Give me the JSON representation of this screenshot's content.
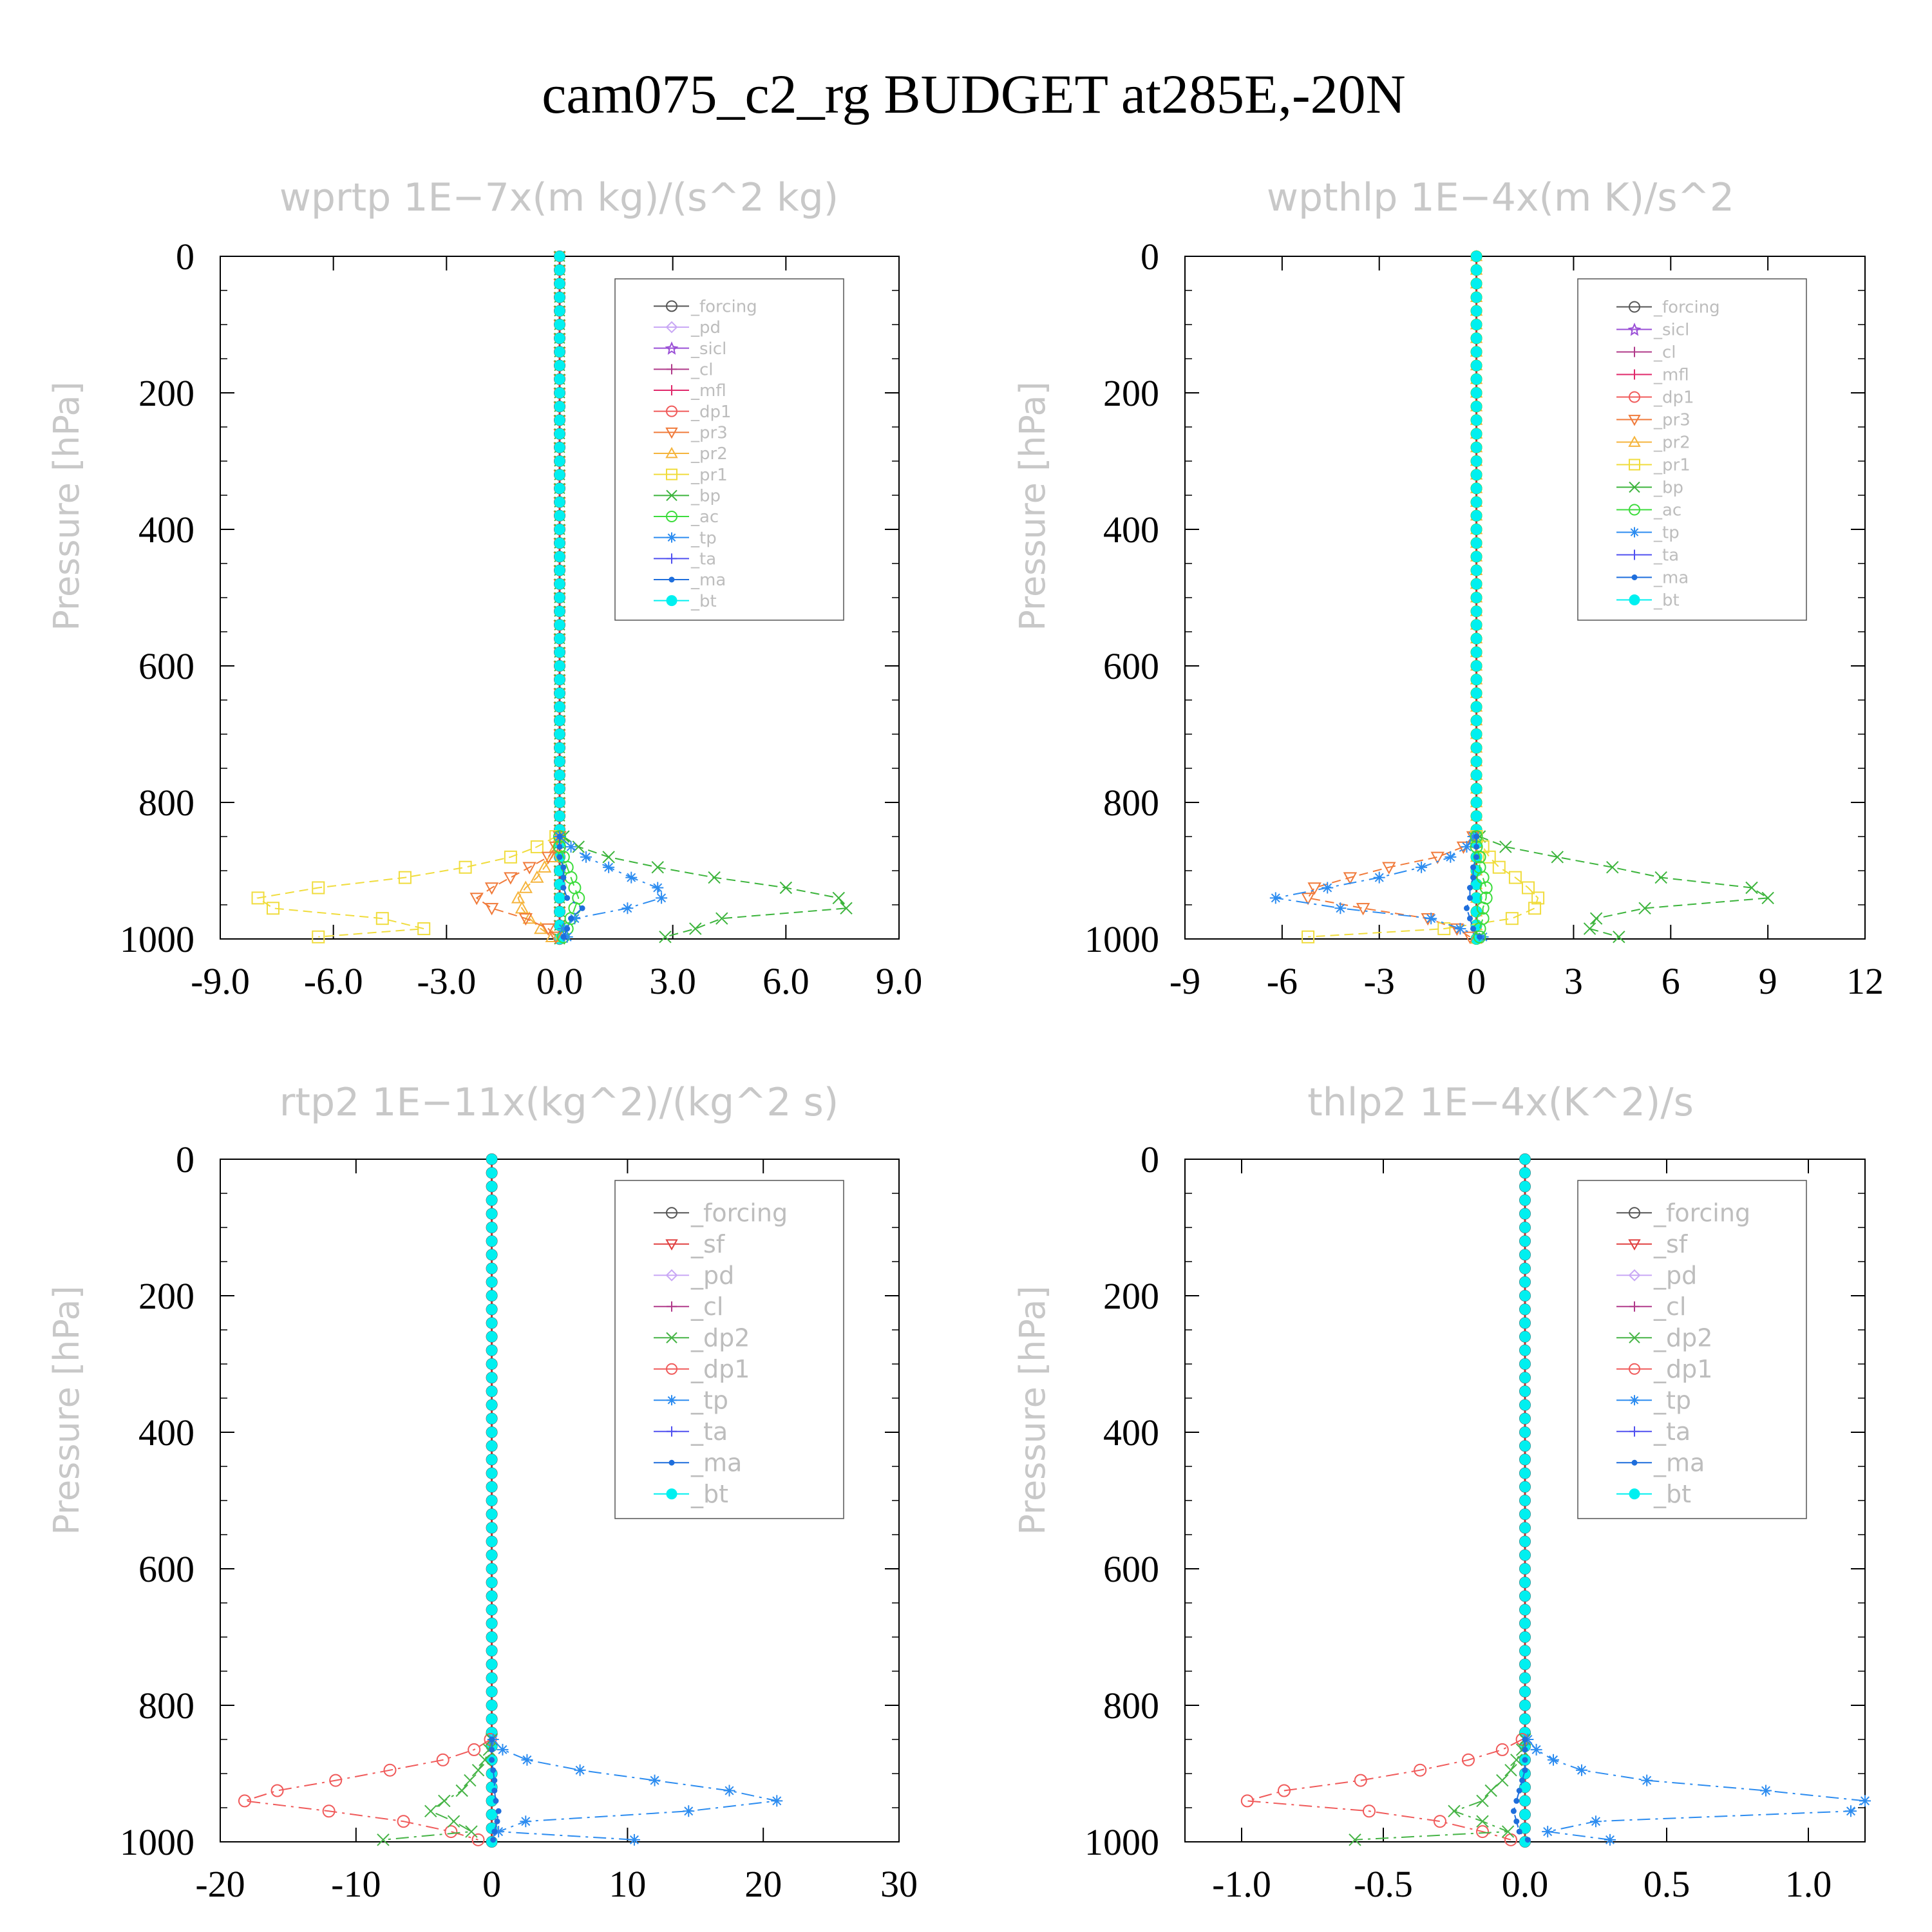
{
  "figure": {
    "title": "cam075_c2_rg  BUDGET at285E,-20N"
  },
  "colors": {
    "forcing": "#555555",
    "pd": "#c9a8f5",
    "sicl": "#9a4fd6",
    "cl": "#b03a8a",
    "mfl": "#e0286a",
    "dp1": "#f05a5a",
    "pr3": "#f07a3a",
    "pr2": "#f5b43c",
    "pr1": "#f0dc3c",
    "bp": "#3cb43c",
    "ac": "#3cdc3c",
    "tp": "#2c8cf0",
    "ta": "#5050f0",
    "ma": "#1e6edc",
    "bt": "#00f0f0",
    "sf": "#e04040",
    "dp2": "#46b446"
  },
  "chart_data": [
    {
      "type": "line",
      "title": "wprtp  1E−7x(m kg)/(s^2 kg)",
      "ylabel": "Pressure [hPa]",
      "xlim": [
        -9,
        9
      ],
      "xticks": [
        -9,
        -6,
        -3,
        0,
        3,
        6,
        9
      ],
      "xtick_labels": [
        "-9.0",
        "-6.0",
        "-3.0",
        "0.0",
        "3.0",
        "6.0",
        "9.0"
      ],
      "ylim": [
        0,
        1000
      ],
      "yticks": [
        0,
        200,
        400,
        600,
        800,
        1000
      ],
      "y_inverted": true,
      "legend_position": "top-right",
      "legend": [
        "_forcing",
        "_pd",
        "_sicl",
        "_cl",
        "_mfl",
        "_dp1",
        "_pr3",
        "_pr2",
        "_pr1",
        "_bp",
        "_ac",
        "_tp",
        "_ta",
        "_ma",
        "_bt"
      ],
      "p": [
        850,
        865,
        880,
        895,
        910,
        925,
        940,
        955,
        970,
        985,
        997
      ],
      "series": [
        {
          "name": "_pr1",
          "key": "pr1",
          "marker": "square",
          "values": [
            -0.1,
            -0.6,
            -1.3,
            -2.5,
            -4.1,
            -6.4,
            -8.0,
            -7.6,
            -4.7,
            -3.6,
            -6.4
          ]
        },
        {
          "name": "_pr2",
          "key": "pr2",
          "marker": "triangle",
          "values": [
            0,
            -0.1,
            -0.2,
            -0.4,
            -0.6,
            -0.9,
            -1.1,
            -1.0,
            -0.8,
            -0.5,
            -0.2
          ]
        },
        {
          "name": "_pr3",
          "key": "pr3",
          "marker": "triangle-down",
          "values": [
            0,
            -0.1,
            -0.3,
            -0.8,
            -1.3,
            -1.8,
            -2.2,
            -1.8,
            -0.9,
            -0.3,
            -0.1
          ]
        },
        {
          "name": "_bp",
          "key": "bp",
          "marker": "x",
          "values": [
            0.1,
            0.5,
            1.3,
            2.6,
            4.1,
            6.0,
            7.4,
            7.6,
            4.3,
            3.6,
            2.8
          ]
        },
        {
          "name": "_ac",
          "key": "ac",
          "marker": "circle",
          "values": [
            0,
            0,
            0.1,
            0.2,
            0.3,
            0.4,
            0.5,
            0.4,
            0.3,
            0.2,
            0.1
          ]
        },
        {
          "name": "_tp",
          "key": "tp",
          "marker": "asterisk",
          "values": [
            0,
            0.3,
            0.7,
            1.3,
            1.9,
            2.6,
            2.7,
            1.8,
            0.4,
            0.1,
            0.2
          ]
        },
        {
          "name": "_ma",
          "key": "ma",
          "marker": "dot",
          "values": [
            0,
            0,
            0,
            0.1,
            0.1,
            0.1,
            0.2,
            0.6,
            0.3,
            0.2,
            0.1
          ]
        }
      ]
    },
    {
      "type": "line",
      "title": "wpthlp  1E−4x(m K)/s^2",
      "ylabel": "Pressure [hPa]",
      "xlim": [
        -9,
        12
      ],
      "xticks": [
        -9,
        -6,
        -3,
        0,
        3,
        6,
        9,
        12
      ],
      "xtick_labels": [
        "-9",
        "-6",
        "-3",
        "0",
        "3",
        "6",
        "9",
        "12"
      ],
      "ylim": [
        0,
        1000
      ],
      "yticks": [
        0,
        200,
        400,
        600,
        800,
        1000
      ],
      "y_inverted": true,
      "legend_position": "top-right",
      "legend": [
        "_forcing",
        "_sicl",
        "_cl",
        "_mfl",
        "_dp1",
        "_pr3",
        "_pr2",
        "_pr1",
        "_bp",
        "_ac",
        "_tp",
        "_ta",
        "_ma",
        "_bt"
      ],
      "p": [
        850,
        865,
        880,
        895,
        910,
        925,
        940,
        955,
        970,
        985,
        997
      ],
      "series": [
        {
          "name": "_pr3",
          "key": "pr3",
          "marker": "triangle-down",
          "values": [
            -0.1,
            -0.4,
            -1.2,
            -2.7,
            -3.9,
            -5.0,
            -5.2,
            -3.5,
            -1.5,
            -0.6,
            -0.2
          ]
        },
        {
          "name": "_bp",
          "key": "bp",
          "marker": "x",
          "values": [
            0.1,
            0.9,
            2.5,
            4.2,
            5.7,
            8.5,
            9.0,
            5.2,
            3.7,
            3.5,
            4.4
          ]
        },
        {
          "name": "_pr1",
          "key": "pr1",
          "marker": "square",
          "values": [
            0,
            0.2,
            0.4,
            0.7,
            1.2,
            1.6,
            1.9,
            1.8,
            1.1,
            -1.0,
            -5.2
          ]
        },
        {
          "name": "_tp",
          "key": "tp",
          "marker": "asterisk",
          "values": [
            -0.1,
            -0.3,
            -0.8,
            -1.7,
            -3.0,
            -4.6,
            -6.2,
            -4.2,
            -1.4,
            -0.5,
            0.2
          ]
        },
        {
          "name": "_ac",
          "key": "ac",
          "marker": "circle",
          "values": [
            0,
            0,
            0.1,
            0.1,
            0.2,
            0.3,
            0.3,
            0.2,
            0.2,
            0.1,
            0.1
          ]
        },
        {
          "name": "_ma",
          "key": "ma",
          "marker": "dot",
          "values": [
            0,
            0,
            0,
            -0.1,
            -0.1,
            -0.2,
            -0.2,
            -0.3,
            -0.2,
            -0.1,
            0.1
          ]
        }
      ]
    },
    {
      "type": "line",
      "title": "rtp2  1E−11x(kg^2)/(kg^2 s)",
      "ylabel": "Pressure [hPa]",
      "xlim": [
        -20,
        30
      ],
      "xticks": [
        -20,
        -10,
        0,
        10,
        20,
        30
      ],
      "xtick_labels": [
        "-20",
        "-10",
        "0",
        "10",
        "20",
        "30"
      ],
      "ylim": [
        0,
        1000
      ],
      "yticks": [
        0,
        200,
        400,
        600,
        800,
        1000
      ],
      "y_inverted": true,
      "legend_position": "top-right",
      "legend": [
        "_forcing",
        "_sf",
        "_pd",
        "_cl",
        "_dp2",
        "_dp1",
        "_tp",
        "_ta",
        "_ma",
        "_bt"
      ],
      "p": [
        850,
        865,
        880,
        895,
        910,
        925,
        940,
        955,
        970,
        985,
        997
      ],
      "series": [
        {
          "name": "_dp1",
          "key": "dp1",
          "marker": "circle",
          "values": [
            -0.1,
            -1.3,
            -3.6,
            -7.5,
            -11.5,
            -15.8,
            -18.2,
            -12.0,
            -6.5,
            -3.0,
            -1.0
          ]
        },
        {
          "name": "_dp2",
          "key": "dp2",
          "marker": "x",
          "values": [
            0,
            -0.2,
            -0.5,
            -1.0,
            -1.6,
            -2.2,
            -3.5,
            -4.5,
            -2.8,
            -1.5,
            -8.0
          ]
        },
        {
          "name": "_tp",
          "key": "tp",
          "marker": "asterisk",
          "values": [
            0.1,
            0.8,
            2.6,
            6.5,
            12.0,
            17.5,
            21.0,
            14.5,
            2.5,
            0.5,
            10.5
          ]
        },
        {
          "name": "_ma",
          "key": "ma",
          "marker": "dot",
          "values": [
            0,
            0,
            0,
            0.1,
            0.2,
            0.2,
            0.3,
            0.5,
            0.4,
            0.2,
            0.1
          ]
        }
      ]
    },
    {
      "type": "line",
      "title": "thlp2  1E−4x(K^2)/s",
      "ylabel": "Pressure [hPa]",
      "xlim": [
        -1.2,
        1.2
      ],
      "xticks": [
        -1.0,
        -0.5,
        0.0,
        0.5,
        1.0
      ],
      "xtick_labels": [
        "-1.0",
        "-0.5",
        "0.0",
        "0.5",
        "1.0"
      ],
      "ylim": [
        0,
        1000
      ],
      "yticks": [
        0,
        200,
        400,
        600,
        800,
        1000
      ],
      "y_inverted": true,
      "legend_position": "top-right",
      "legend": [
        "_forcing",
        "_sf",
        "_pd",
        "_cl",
        "_dp2",
        "_dp1",
        "_tp",
        "_ta",
        "_ma",
        "_bt"
      ],
      "p": [
        850,
        865,
        880,
        895,
        910,
        925,
        940,
        955,
        970,
        985,
        997
      ],
      "series": [
        {
          "name": "_dp1",
          "key": "dp1",
          "marker": "circle",
          "values": [
            -0.01,
            -0.08,
            -0.2,
            -0.37,
            -0.58,
            -0.85,
            -0.98,
            -0.55,
            -0.3,
            -0.15,
            -0.05
          ]
        },
        {
          "name": "_dp2",
          "key": "dp2",
          "marker": "x",
          "values": [
            0,
            -0.01,
            -0.03,
            -0.05,
            -0.08,
            -0.12,
            -0.15,
            -0.25,
            -0.15,
            -0.06,
            -0.6
          ]
        },
        {
          "name": "_tp",
          "key": "tp",
          "marker": "asterisk",
          "values": [
            0.01,
            0.04,
            0.1,
            0.2,
            0.43,
            0.85,
            1.2,
            1.15,
            0.25,
            0.08,
            0.3
          ]
        },
        {
          "name": "_ma",
          "key": "ma",
          "marker": "dot",
          "values": [
            0,
            0,
            0,
            0,
            -0.01,
            -0.02,
            -0.03,
            -0.04,
            -0.03,
            -0.02,
            0.01
          ]
        }
      ]
    }
  ]
}
